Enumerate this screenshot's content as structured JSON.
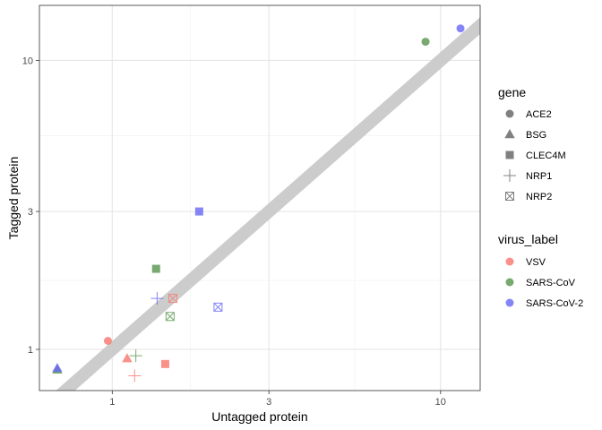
{
  "chart_data": {
    "type": "scatter",
    "title": "",
    "xlabel": "Untagged protein",
    "ylabel": "Tagged protein",
    "x_scale": "log10",
    "y_scale": "log10",
    "xlim": [
      0.6,
      13.2
    ],
    "ylim": [
      0.72,
      15.5
    ],
    "x_ticks": [
      1,
      3,
      10
    ],
    "y_ticks": [
      1,
      3,
      10
    ],
    "x_tick_labels": [
      "1",
      "3",
      "10"
    ],
    "y_tick_labels": [
      "1",
      "3",
      "10"
    ],
    "grid": true,
    "reference_line": {
      "slope": 1,
      "intercept": 0,
      "color": "#cccccc"
    },
    "legend_placement": "right",
    "legends": {
      "gene": {
        "title": "gene",
        "entries": [
          {
            "label": "ACE2",
            "shape": "circle"
          },
          {
            "label": "BSG",
            "shape": "triangle"
          },
          {
            "label": "CLEC4M",
            "shape": "square"
          },
          {
            "label": "NRP1",
            "shape": "plus"
          },
          {
            "label": "NRP2",
            "shape": "square-x"
          }
        ]
      },
      "virus_label": {
        "title": "virus_label",
        "entries": [
          {
            "label": "VSV",
            "color": "#f8766d"
          },
          {
            "label": "SARS-CoV",
            "color": "#56944b"
          },
          {
            "label": "SARS-CoV-2",
            "color": "#6666f5"
          }
        ]
      }
    },
    "points": [
      {
        "gene": "ACE2",
        "virus": "VSV",
        "x": 0.97,
        "y": 1.07
      },
      {
        "gene": "ACE2",
        "virus": "SARS-CoV",
        "x": 9.0,
        "y": 11.6
      },
      {
        "gene": "ACE2",
        "virus": "SARS-CoV-2",
        "x": 11.5,
        "y": 12.9
      },
      {
        "gene": "BSG",
        "virus": "VSV",
        "x": 1.11,
        "y": 0.93
      },
      {
        "gene": "BSG",
        "virus": "SARS-CoV",
        "x": 0.68,
        "y": 0.85
      },
      {
        "gene": "BSG",
        "virus": "SARS-CoV-2",
        "x": 0.68,
        "y": 0.86
      },
      {
        "gene": "CLEC4M",
        "virus": "VSV",
        "x": 1.45,
        "y": 0.89
      },
      {
        "gene": "CLEC4M",
        "virus": "SARS-CoV",
        "x": 1.36,
        "y": 1.9
      },
      {
        "gene": "CLEC4M",
        "virus": "SARS-CoV-2",
        "x": 1.84,
        "y": 3.0
      },
      {
        "gene": "NRP1",
        "virus": "VSV",
        "x": 1.17,
        "y": 0.81
      },
      {
        "gene": "NRP1",
        "virus": "SARS-CoV",
        "x": 1.18,
        "y": 0.95
      },
      {
        "gene": "NRP1",
        "virus": "SARS-CoV-2",
        "x": 1.37,
        "y": 1.5
      },
      {
        "gene": "NRP2",
        "virus": "VSV",
        "x": 1.53,
        "y": 1.5
      },
      {
        "gene": "NRP2",
        "virus": "SARS-CoV",
        "x": 1.5,
        "y": 1.3
      },
      {
        "gene": "NRP2",
        "virus": "SARS-CoV-2",
        "x": 2.1,
        "y": 1.4
      }
    ]
  }
}
